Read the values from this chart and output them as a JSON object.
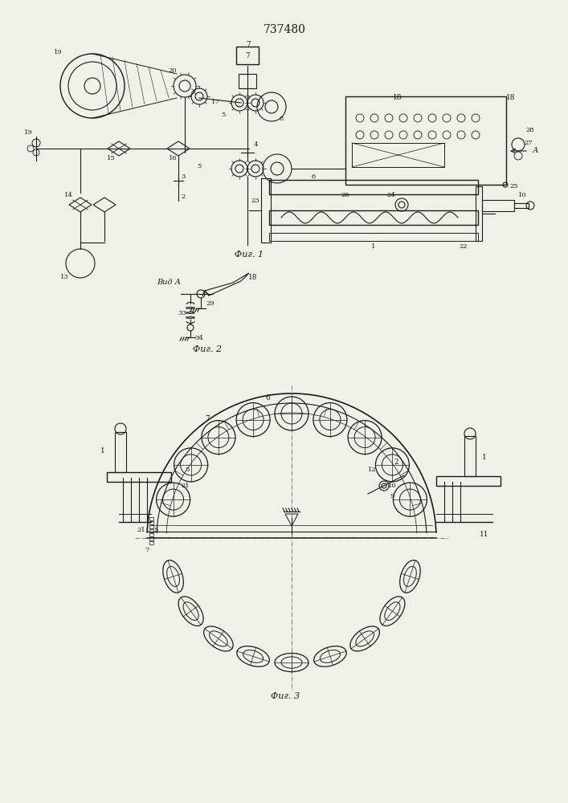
{
  "title": "737480",
  "bg_color": "#f0efe8",
  "line_color": "#1a1a1a",
  "fig1_label": "Фиг. 1",
  "fig2_label": "Фиг. 2",
  "fig3_label": "Фиг. 3",
  "fig2_view_label": "Вид А"
}
